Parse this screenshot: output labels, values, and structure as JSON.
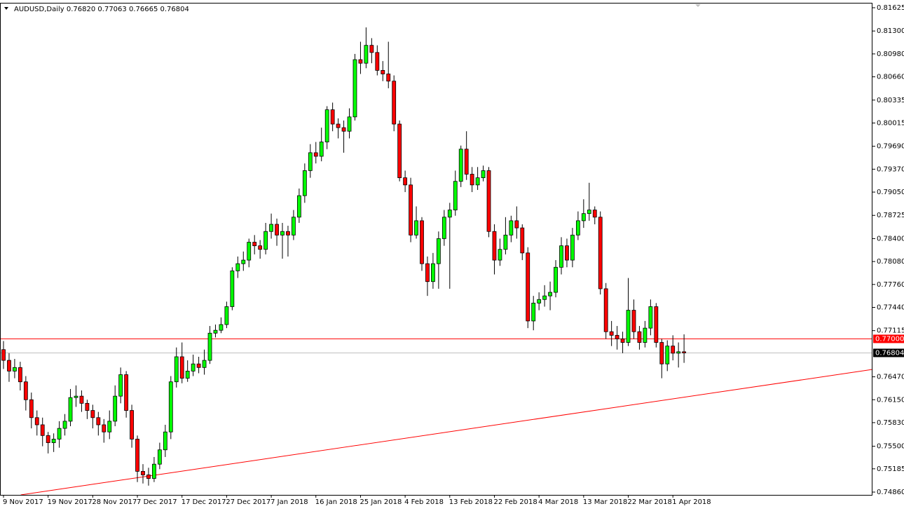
{
  "chart_data": {
    "type": "candlestick",
    "header": "AUDUSD,Daily 0.76820 0.77063 0.76665 0.76804",
    "bull_color": "#00ff00",
    "bear_color": "#ff0000",
    "ylim": [
      0.74821,
      0.81684
    ],
    "yticks": [
      0.81625,
      {
        "value": 0.813,
        "label": "0.81300"
      },
      {
        "value": 0.8098,
        "label": "0.80980"
      },
      {
        "value": 0.8066,
        "label": "0.80660"
      },
      0.80335,
      0.80015,
      {
        "value": 0.7969,
        "label": "0.79690"
      },
      {
        "value": 0.7937,
        "label": "0.79370"
      },
      {
        "value": 0.7905,
        "label": "0.79050"
      },
      0.78725,
      {
        "value": 0.784,
        "label": "0.78400"
      },
      {
        "value": 0.7808,
        "label": "0.78080"
      },
      {
        "value": 0.7776,
        "label": "0.77760"
      },
      {
        "value": 0.7744,
        "label": "0.77440"
      },
      0.77115,
      {
        "value": 0.7647,
        "label": "0.76470"
      },
      {
        "value": 0.7615,
        "label": "0.76150"
      },
      {
        "value": 0.7583,
        "label": "0.75830"
      },
      {
        "value": 0.755,
        "label": "0.75500"
      },
      0.75185,
      {
        "value": 0.7486,
        "label": "0.74860"
      }
    ],
    "hlines": [
      {
        "value": 0.77,
        "label": "0.77000",
        "color": "#ff0000"
      },
      {
        "value": 0.76804,
        "label": "0.76804",
        "color": "#c0c0c0"
      }
    ],
    "trendline": {
      "x": [
        3.1,
        155.8
      ],
      "y": [
        0.74821,
        0.76573
      ],
      "color": "#ff0000"
    },
    "categories": [
      "9 Nov 2017",
      null,
      null,
      null,
      null,
      null,
      null,
      null,
      "19 Nov 2017",
      null,
      null,
      null,
      null,
      null,
      null,
      null,
      "28 Nov 2017",
      null,
      null,
      null,
      null,
      null,
      null,
      null,
      "7 Dec 2017",
      null,
      null,
      null,
      null,
      null,
      null,
      null,
      "17 Dec 2017",
      null,
      null,
      null,
      null,
      null,
      null,
      null,
      "27 Dec 2017",
      null,
      null,
      null,
      null,
      null,
      null,
      null,
      "7 Jan 2018",
      null,
      null,
      null,
      null,
      null,
      null,
      null,
      "16 Jan 2018",
      null,
      null,
      null,
      null,
      null,
      null,
      null,
      "25 Jan 2018",
      null,
      null,
      null,
      null,
      null,
      null,
      null,
      "4 Feb 2018",
      null,
      null,
      null,
      null,
      null,
      null,
      null,
      "13 Feb 2018",
      null,
      null,
      null,
      null,
      null,
      null,
      null,
      "22 Feb 2018",
      null,
      null,
      null,
      null,
      null,
      null,
      null,
      "4 Mar 2018",
      null,
      null,
      null,
      null,
      null,
      null,
      null,
      "13 Mar 2018",
      null,
      null,
      null,
      null,
      null,
      null,
      null,
      "22 Mar 2018",
      null,
      null,
      null,
      null,
      null,
      null,
      null,
      "1 Apr 2018",
      null,
      null
    ],
    "candles": [
      [
        0.7685,
        0.7697,
        0.7658,
        0.767
      ],
      [
        0.767,
        0.768,
        0.764,
        0.7655
      ],
      [
        0.7655,
        0.7672,
        0.7645,
        0.766
      ],
      [
        0.766,
        0.7668,
        0.7628,
        0.764
      ],
      [
        0.764,
        0.7648,
        0.76,
        0.7615
      ],
      [
        0.7615,
        0.7625,
        0.7575,
        0.759
      ],
      [
        0.759,
        0.76,
        0.7565,
        0.758
      ],
      [
        0.758,
        0.759,
        0.755,
        0.7565
      ],
      [
        0.7565,
        0.757,
        0.754,
        0.7555
      ],
      [
        0.7555,
        0.7568,
        0.7542,
        0.756
      ],
      [
        0.756,
        0.7585,
        0.7548,
        0.7575
      ],
      [
        0.7575,
        0.7595,
        0.7565,
        0.7585
      ],
      [
        0.7585,
        0.763,
        0.7578,
        0.7618
      ],
      [
        0.7618,
        0.7635,
        0.7605,
        0.762
      ],
      [
        0.762,
        0.7628,
        0.7598,
        0.761
      ],
      [
        0.761,
        0.7615,
        0.7588,
        0.76
      ],
      [
        0.76,
        0.7608,
        0.7575,
        0.759
      ],
      [
        0.759,
        0.7598,
        0.7565,
        0.758
      ],
      [
        0.758,
        0.7588,
        0.7555,
        0.757
      ],
      [
        0.757,
        0.76,
        0.756,
        0.7585
      ],
      [
        0.7585,
        0.7635,
        0.7578,
        0.762
      ],
      [
        0.762,
        0.766,
        0.761,
        0.765
      ],
      [
        0.765,
        0.7655,
        0.759,
        0.76
      ],
      [
        0.76,
        0.7608,
        0.7548,
        0.756
      ],
      [
        0.756,
        0.7565,
        0.75,
        0.7515
      ],
      [
        0.7515,
        0.7525,
        0.7498,
        0.751
      ],
      [
        0.751,
        0.752,
        0.7495,
        0.7505
      ],
      [
        0.7505,
        0.7535,
        0.75,
        0.7525
      ],
      [
        0.7525,
        0.7555,
        0.7518,
        0.7545
      ],
      [
        0.7545,
        0.758,
        0.7535,
        0.757
      ],
      [
        0.757,
        0.7648,
        0.756,
        0.764
      ],
      [
        0.764,
        0.7688,
        0.7632,
        0.7675
      ],
      [
        0.7675,
        0.7695,
        0.7638,
        0.7645
      ],
      [
        0.7645,
        0.767,
        0.764,
        0.7655
      ],
      [
        0.7655,
        0.7678,
        0.7648,
        0.7665
      ],
      [
        0.7665,
        0.7675,
        0.7652,
        0.766
      ],
      [
        0.766,
        0.7685,
        0.765,
        0.767
      ],
      [
        0.767,
        0.7718,
        0.7665,
        0.7708
      ],
      [
        0.7708,
        0.772,
        0.7702,
        0.7712
      ],
      [
        0.7712,
        0.773,
        0.7708,
        0.772
      ],
      [
        0.772,
        0.7752,
        0.7715,
        0.7745
      ],
      [
        0.7745,
        0.78,
        0.774,
        0.7795
      ],
      [
        0.7795,
        0.7815,
        0.7785,
        0.7805
      ],
      [
        0.7805,
        0.7822,
        0.7795,
        0.781
      ],
      [
        0.781,
        0.784,
        0.78,
        0.7835
      ],
      [
        0.7835,
        0.7845,
        0.7818,
        0.783
      ],
      [
        0.783,
        0.7838,
        0.7812,
        0.7825
      ],
      [
        0.7825,
        0.7862,
        0.7818,
        0.785
      ],
      [
        0.785,
        0.7875,
        0.784,
        0.786
      ],
      [
        0.786,
        0.7868,
        0.783,
        0.7845
      ],
      [
        0.7845,
        0.7862,
        0.7812,
        0.785
      ],
      [
        0.785,
        0.7858,
        0.7815,
        0.7845
      ],
      [
        0.7845,
        0.788,
        0.7838,
        0.787
      ],
      [
        0.787,
        0.791,
        0.7862,
        0.79
      ],
      [
        0.79,
        0.7945,
        0.789,
        0.7935
      ],
      [
        0.7935,
        0.7972,
        0.7925,
        0.796
      ],
      [
        0.796,
        0.7975,
        0.7945,
        0.7955
      ],
      [
        0.7955,
        0.7995,
        0.7948,
        0.7975
      ],
      [
        0.7975,
        0.8025,
        0.7965,
        0.802
      ],
      [
        0.802,
        0.803,
        0.799,
        0.8
      ],
      [
        0.8,
        0.8008,
        0.798,
        0.7995
      ],
      [
        0.7995,
        0.8005,
        0.796,
        0.799
      ],
      [
        0.799,
        0.8022,
        0.798,
        0.801
      ],
      [
        0.801,
        0.8098,
        0.8005,
        0.809
      ],
      [
        0.809,
        0.8115,
        0.807,
        0.8085
      ],
      [
        0.8085,
        0.8135,
        0.8078,
        0.811
      ],
      [
        0.811,
        0.812,
        0.8085,
        0.81
      ],
      [
        0.81,
        0.811,
        0.8068,
        0.8075
      ],
      [
        0.8075,
        0.8088,
        0.806,
        0.807
      ],
      [
        0.807,
        0.8115,
        0.805,
        0.806
      ],
      [
        0.806,
        0.8068,
        0.799,
        0.8
      ],
      [
        0.8,
        0.8005,
        0.792,
        0.7925
      ],
      [
        0.7925,
        0.7935,
        0.7905,
        0.7915
      ],
      [
        0.7915,
        0.7925,
        0.7835,
        0.7845
      ],
      [
        0.7845,
        0.7885,
        0.784,
        0.7865
      ],
      [
        0.7865,
        0.787,
        0.7795,
        0.7805
      ],
      [
        0.7805,
        0.7815,
        0.776,
        0.778
      ],
      [
        0.778,
        0.782,
        0.777,
        0.7805
      ],
      [
        0.7805,
        0.785,
        0.777,
        0.784
      ],
      [
        0.784,
        0.788,
        0.783,
        0.787
      ],
      [
        0.787,
        0.789,
        0.777,
        0.788
      ],
      [
        0.788,
        0.7935,
        0.7872,
        0.792
      ],
      [
        0.792,
        0.797,
        0.7912,
        0.7965
      ],
      [
        0.7965,
        0.799,
        0.7922,
        0.793
      ],
      [
        0.793,
        0.794,
        0.7905,
        0.7915
      ],
      [
        0.7915,
        0.794,
        0.7908,
        0.7925
      ],
      [
        0.7925,
        0.7942,
        0.792,
        0.7935
      ],
      [
        0.7935,
        0.794,
        0.7842,
        0.785
      ],
      [
        0.785,
        0.786,
        0.779,
        0.781
      ],
      [
        0.781,
        0.784,
        0.7802,
        0.7825
      ],
      [
        0.7825,
        0.787,
        0.7818,
        0.7845
      ],
      [
        0.7845,
        0.7872,
        0.7835,
        0.7865
      ],
      [
        0.7865,
        0.7885,
        0.784,
        0.7855
      ],
      [
        0.7855,
        0.786,
        0.781,
        0.782
      ],
      [
        0.782,
        0.7828,
        0.7715,
        0.7725
      ],
      [
        0.7725,
        0.776,
        0.7712,
        0.775
      ],
      [
        0.775,
        0.7765,
        0.774,
        0.7755
      ],
      [
        0.7755,
        0.7775,
        0.7745,
        0.776
      ],
      [
        0.776,
        0.778,
        0.774,
        0.7765
      ],
      [
        0.7765,
        0.781,
        0.7758,
        0.78
      ],
      [
        0.78,
        0.7842,
        0.779,
        0.783
      ],
      [
        0.783,
        0.784,
        0.78,
        0.781
      ],
      [
        0.781,
        0.7855,
        0.78,
        0.7845
      ],
      [
        0.7845,
        0.7878,
        0.7838,
        0.7865
      ],
      [
        0.7865,
        0.7895,
        0.7855,
        0.7875
      ],
      [
        0.7875,
        0.7918,
        0.7865,
        0.788
      ],
      [
        0.788,
        0.7885,
        0.786,
        0.787
      ],
      [
        0.787,
        0.7878,
        0.7762,
        0.777
      ],
      [
        0.777,
        0.7778,
        0.77,
        0.771
      ],
      [
        0.771,
        0.7725,
        0.769,
        0.7705
      ],
      [
        0.7705,
        0.7718,
        0.7685,
        0.77
      ],
      [
        0.77,
        0.771,
        0.768,
        0.7695
      ],
      [
        0.7695,
        0.7785,
        0.769,
        0.774
      ],
      [
        0.774,
        0.7755,
        0.77,
        0.771
      ],
      [
        0.771,
        0.7718,
        0.7685,
        0.7695
      ],
      [
        0.7695,
        0.7725,
        0.7688,
        0.7715
      ],
      [
        0.7715,
        0.7755,
        0.7705,
        0.7745
      ],
      [
        0.7745,
        0.775,
        0.7688,
        0.7695
      ],
      [
        0.7695,
        0.77,
        0.7645,
        0.7665
      ],
      [
        0.7665,
        0.7698,
        0.7655,
        0.769
      ],
      [
        0.769,
        0.7705,
        0.767,
        0.768
      ],
      [
        0.768,
        0.7695,
        0.766,
        0.7682
      ],
      [
        0.7682,
        0.77063,
        0.76665,
        0.76804
      ]
    ]
  }
}
